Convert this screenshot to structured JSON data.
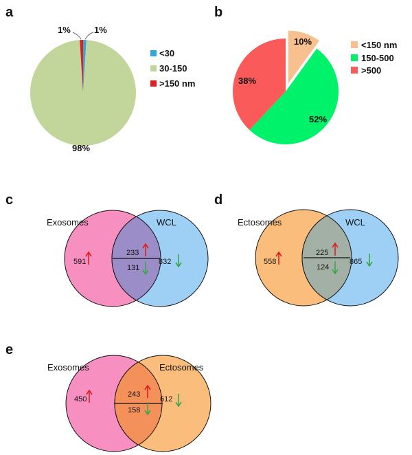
{
  "panels": {
    "a": "a",
    "b": "b",
    "c": "c",
    "d": "d",
    "e": "e"
  },
  "chart_data": [
    {
      "panel": "a",
      "type": "pie",
      "categories": [
        "<30",
        "30-150",
        ">150 nm"
      ],
      "values": [
        1,
        98,
        1
      ],
      "labels": [
        "1%",
        "98%",
        "1%"
      ],
      "colors": [
        "#35a6db",
        "#c2d69b",
        "#e01e1e"
      ],
      "legend": "right"
    },
    {
      "panel": "b",
      "type": "pie",
      "categories": [
        "<150 nm",
        "150-500",
        ">500"
      ],
      "values": [
        10,
        52,
        38
      ],
      "labels": [
        "10%",
        "52%",
        "38%"
      ],
      "colors": [
        "#f7c08e",
        "#00f26b",
        "#fa5a5a"
      ],
      "legend": "right",
      "exploded": "<150 nm"
    },
    {
      "panel": "c",
      "type": "venn",
      "sets": [
        "Exosomes",
        "WCL"
      ],
      "colors": [
        "#f78fc0",
        "#9ed0f5"
      ],
      "overlap_color": "#9b8dc8",
      "left_only": "591",
      "right_only": "832",
      "intersect_up": "233",
      "intersect_down": "131"
    },
    {
      "panel": "d",
      "type": "venn",
      "sets": [
        "Ectosomes",
        "WCL"
      ],
      "colors": [
        "#fbbd7b",
        "#9ed0f5"
      ],
      "overlap_color": "#a3b0a6",
      "left_only": "558",
      "right_only": "865",
      "intersect_up": "225",
      "intersect_down": "124"
    },
    {
      "panel": "e",
      "type": "venn",
      "sets": [
        "Exosomes",
        "Ectosomes"
      ],
      "colors": [
        "#f78fc0",
        "#fbbd7b"
      ],
      "overlap_color": "#f4905a",
      "left_only": "450",
      "right_only": "612",
      "intersect_up": "243",
      "intersect_down": "158"
    }
  ],
  "arrow_colors": {
    "up": "#e01e1e",
    "down": "#3aa64a"
  }
}
